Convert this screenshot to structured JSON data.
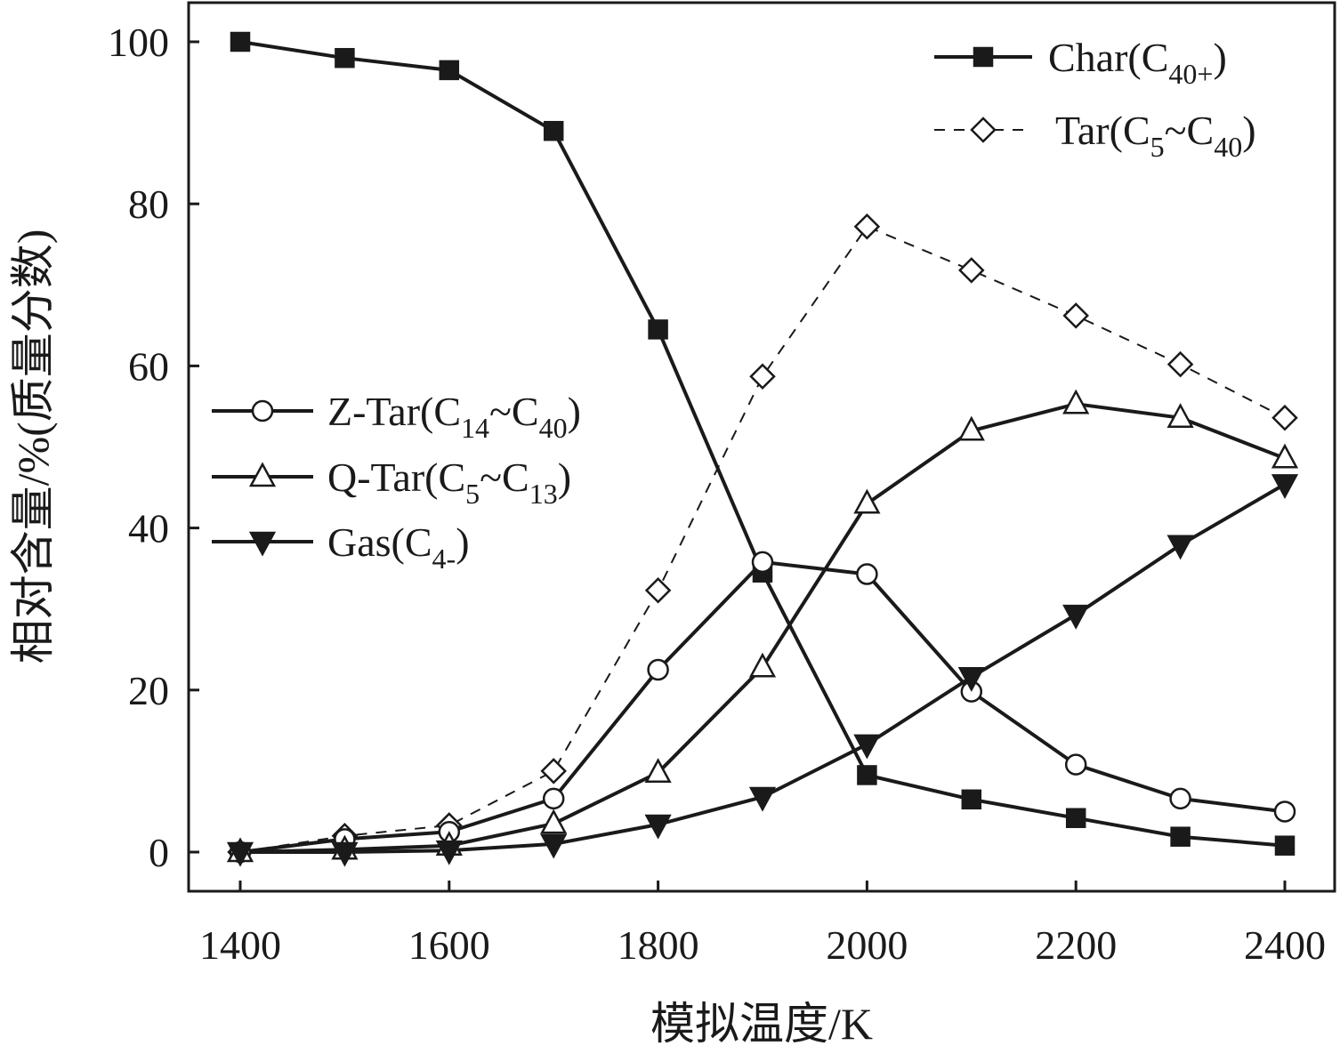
{
  "chart_data": {
    "type": "line",
    "xlabel": "模拟温度/K",
    "ylabel": "相对含量/%(质量分数)",
    "xlim": [
      1350,
      2450
    ],
    "ylim": [
      -5,
      105
    ],
    "x_ticks": [
      1400,
      1600,
      1800,
      2000,
      2200,
      2400
    ],
    "y_ticks": [
      0,
      20,
      40,
      60,
      80,
      100
    ],
    "grid": false,
    "x": [
      1400,
      1500,
      1600,
      1700,
      1800,
      1900,
      2000,
      2100,
      2200,
      2300,
      2400
    ],
    "series": [
      {
        "key": "char",
        "name": "Char(C40+)",
        "label": {
          "main": "Char(C",
          "sub1": "40+",
          "mid": "",
          "sub2": "",
          "end": ")"
        },
        "marker": "square-filled",
        "line": "solid",
        "values": [
          100,
          98,
          96.5,
          89,
          64.5,
          34.5,
          9.5,
          6.5,
          4.2,
          1.9,
          0.8
        ]
      },
      {
        "key": "tar",
        "name": "Tar(C5~C40)",
        "label": {
          "main": "Tar(C",
          "sub1": "5",
          "mid": "~C",
          "sub2": "40",
          "end": ")"
        },
        "marker": "diamond-open",
        "line": "dashed",
        "values": [
          0,
          2,
          3.3,
          10,
          32.3,
          58.7,
          77.2,
          71.8,
          66.2,
          60.2,
          53.6
        ]
      },
      {
        "key": "ztar",
        "name": "Z-Tar(C14~C40)",
        "label": {
          "main": "Z-Tar(C",
          "sub1": "14",
          "mid": "~C",
          "sub2": "40",
          "end": ")"
        },
        "marker": "circle-open",
        "line": "solid",
        "values": [
          0,
          1.6,
          2.5,
          6.6,
          22.5,
          35.8,
          34.3,
          19.8,
          10.8,
          6.6,
          5
        ]
      },
      {
        "key": "qtar",
        "name": "Q-Tar(C5~C13)",
        "label": {
          "main": "Q-Tar(C",
          "sub1": "5",
          "mid": "~C",
          "sub2": "13",
          "end": ")"
        },
        "marker": "triangle-up-open",
        "line": "solid",
        "values": [
          0,
          0.3,
          0.8,
          3.5,
          9.8,
          22.8,
          43,
          52,
          55.3,
          53.6,
          48.6
        ]
      },
      {
        "key": "gas",
        "name": "Gas(C4-)",
        "label": {
          "main": "Gas(C",
          "sub1": "4-",
          "mid": "",
          "sub2": "",
          "end": ")"
        },
        "marker": "triangle-down-filled",
        "line": "solid",
        "values": [
          0,
          0,
          0.2,
          1,
          3.4,
          6.8,
          13.3,
          21.6,
          29.3,
          37.9,
          45.4
        ]
      }
    ],
    "legend_groups": [
      [
        "char",
        "tar"
      ],
      [
        "ztar",
        "qtar",
        "gas"
      ]
    ],
    "colors": {
      "line": "#1a1a1a",
      "marker_fill_open": "#ffffff",
      "background": "#ffffff"
    }
  }
}
